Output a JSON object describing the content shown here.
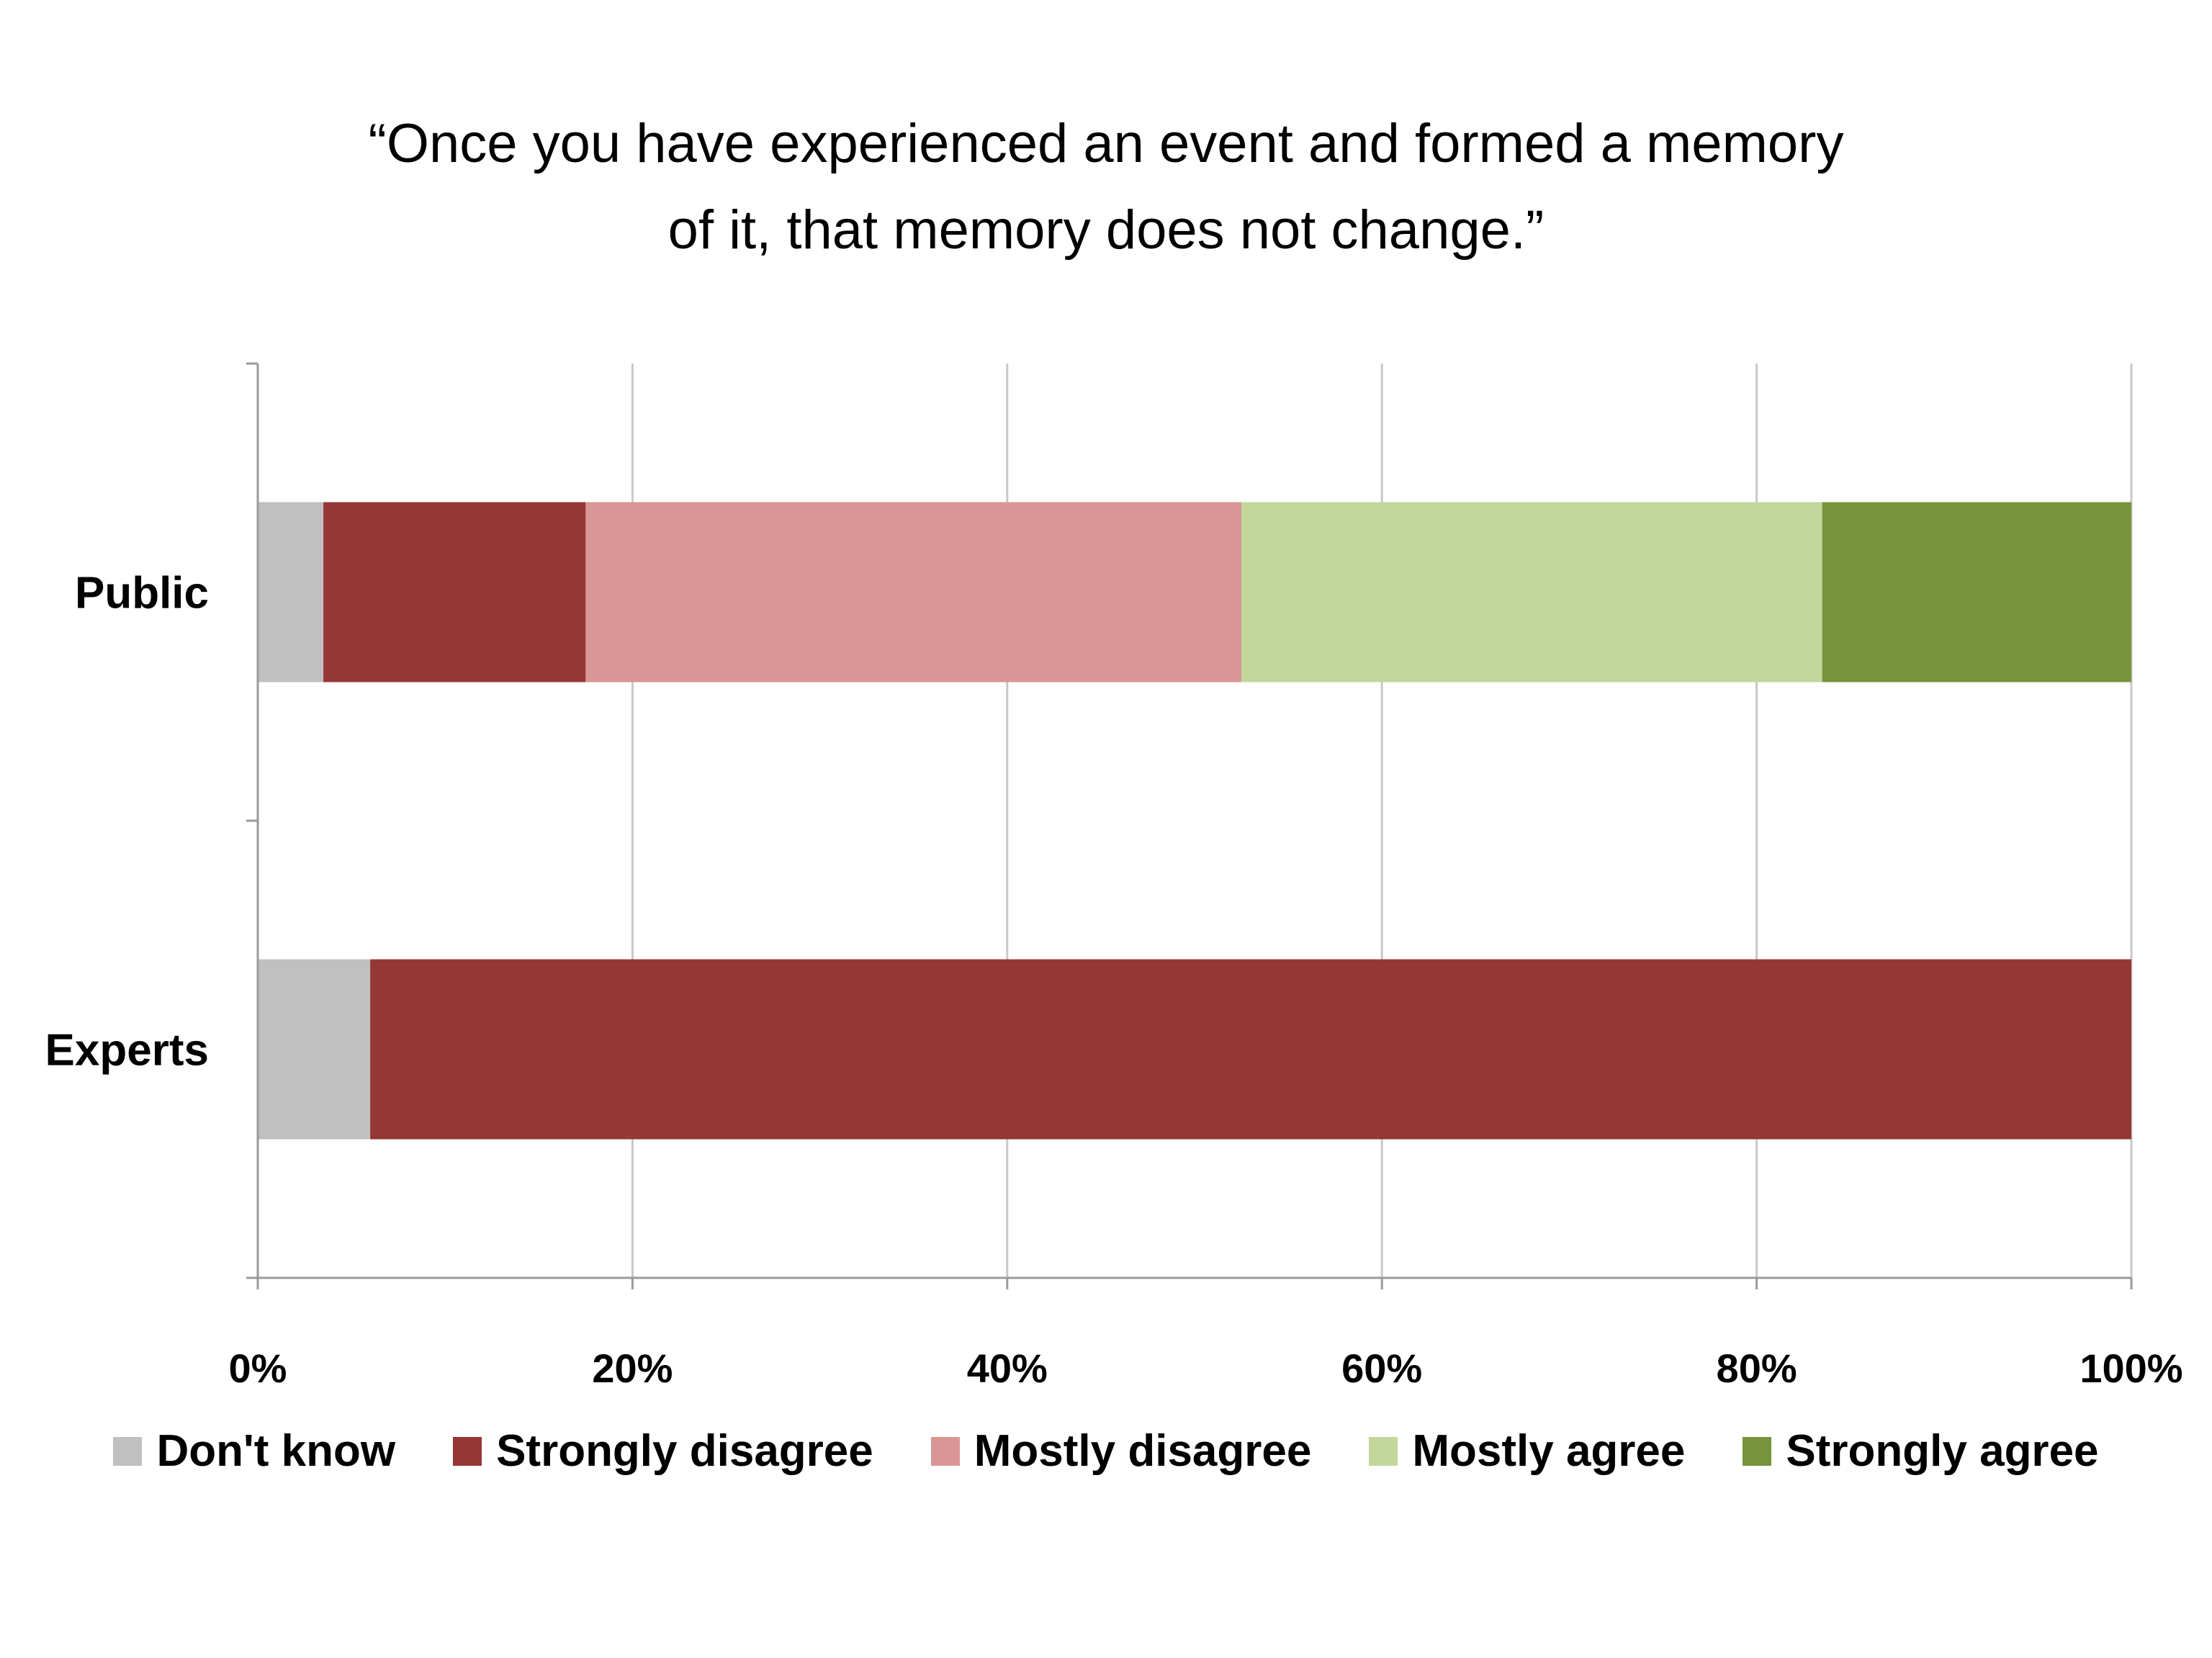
{
  "chart_data": {
    "type": "bar",
    "orientation": "horizontal",
    "stacked": true,
    "title_lines": [
      "“Once you have experienced an event and formed a memory",
      "of it, that memory does not change.”"
    ],
    "categories": [
      "Public",
      "Experts"
    ],
    "series": [
      {
        "name": "Don't know",
        "color": "#c0c0c0",
        "values": [
          3.5,
          6
        ]
      },
      {
        "name": "Strongly disagree",
        "color": "#953735",
        "values": [
          14,
          94
        ]
      },
      {
        "name": "Mostly disagree",
        "color": "#d99694",
        "values": [
          35,
          0
        ]
      },
      {
        "name": "Mostly agree",
        "color": "#c3d69b",
        "values": [
          31,
          0
        ]
      },
      {
        "name": "Strongly agree",
        "color": "#77933c",
        "values": [
          16.5,
          0
        ]
      }
    ],
    "xlim": [
      0,
      100
    ],
    "x_ticks": [
      "0%",
      "20%",
      "40%",
      "60%",
      "80%",
      "100%"
    ],
    "grid": true,
    "legend_position": "bottom"
  }
}
